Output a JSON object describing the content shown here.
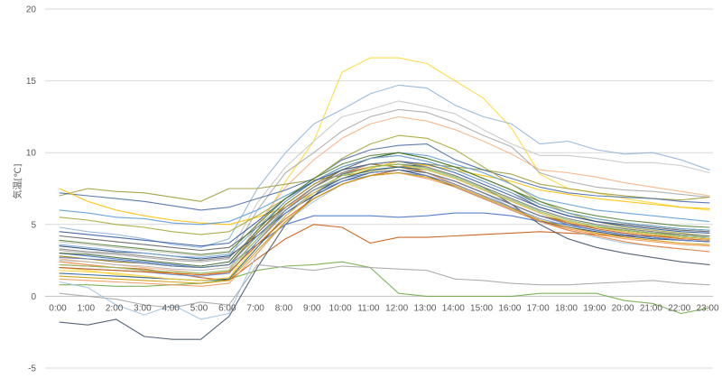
{
  "chart_data": {
    "type": "line",
    "title": "",
    "xlabel": "",
    "ylabel": "気温[℃]",
    "ylim": [
      -5,
      20
    ],
    "yticks": [
      -5,
      0,
      5,
      10,
      15,
      20
    ],
    "grid": true,
    "legend": "none",
    "categories": [
      "0:00",
      "1:00",
      "2:00",
      "3:00",
      "4:00",
      "5:00",
      "6:00",
      "7:00",
      "8:00",
      "9:00",
      "10:00",
      "11:00",
      "12:00",
      "13:00",
      "14:00",
      "15:00",
      "16:00",
      "17:00",
      "18:00",
      "19:00",
      "20:00",
      "21:00",
      "22:00",
      "23:00"
    ],
    "series": [
      {
        "color": "#ffd83a",
        "values": [
          2.0,
          1.8,
          1.5,
          1.3,
          1.2,
          1.1,
          1.2,
          4.5,
          8.0,
          10.8,
          15.6,
          16.6,
          16.6,
          16.2,
          15.0,
          13.8,
          11.7,
          8.5,
          7.5,
          7.2,
          6.8,
          6.5,
          6.2,
          6.0
        ]
      },
      {
        "color": "#8fb4d9",
        "values": [
          4.8,
          4.5,
          4.3,
          4.0,
          3.6,
          3.4,
          4.0,
          7.5,
          10.0,
          12.0,
          13.0,
          14.1,
          14.7,
          14.5,
          13.3,
          12.5,
          12.0,
          10.6,
          10.8,
          10.2,
          9.9,
          10.0,
          9.5,
          8.8
        ]
      },
      {
        "color": "#c6c6c6",
        "values": [
          3.8,
          3.6,
          3.4,
          3.2,
          3.0,
          2.8,
          3.0,
          6.5,
          9.0,
          10.8,
          12.5,
          13.0,
          13.6,
          13.2,
          12.7,
          11.6,
          10.6,
          9.8,
          9.8,
          9.6,
          9.3,
          9.3,
          9.1,
          8.6
        ]
      },
      {
        "color": "#a9a9a9",
        "values": [
          3.2,
          3.0,
          2.9,
          2.7,
          2.5,
          2.4,
          2.6,
          6.0,
          8.6,
          10.0,
          11.5,
          12.5,
          13.0,
          12.8,
          12.1,
          11.2,
          10.4,
          8.6,
          8.0,
          7.6,
          7.4,
          7.3,
          7.1,
          6.9
        ]
      },
      {
        "color": "#f4b183",
        "values": [
          2.6,
          2.4,
          2.2,
          2.0,
          1.8,
          1.6,
          1.8,
          5.0,
          7.6,
          9.5,
          11.0,
          12.0,
          12.5,
          12.2,
          11.6,
          10.8,
          9.9,
          8.8,
          8.6,
          8.3,
          7.9,
          7.6,
          7.3,
          7.0
        ]
      },
      {
        "color": "#9e9a3a",
        "values": [
          7.0,
          7.5,
          7.3,
          7.2,
          6.9,
          6.6,
          7.5,
          7.5,
          7.8,
          8.1,
          8.4,
          8.7,
          9.0,
          9.2,
          9.0,
          8.8,
          8.5,
          7.8,
          7.5,
          7.2,
          7.0,
          6.8,
          6.7,
          6.9
        ]
      },
      {
        "color": "#4a6ea9",
        "values": [
          7.2,
          7.0,
          6.8,
          6.6,
          6.3,
          6.0,
          6.2,
          6.8,
          7.4,
          8.2,
          9.5,
          10.2,
          10.5,
          10.6,
          9.5,
          8.8,
          8.2,
          7.6,
          7.2,
          7.0,
          6.9,
          6.8,
          6.6,
          6.5
        ]
      },
      {
        "color": "#ffc000",
        "values": [
          7.5,
          6.6,
          6.0,
          5.6,
          5.3,
          5.1,
          5.0,
          5.5,
          6.2,
          7.2,
          8.2,
          8.9,
          9.4,
          9.1,
          8.8,
          8.4,
          8.0,
          7.4,
          7.1,
          6.8,
          6.6,
          6.4,
          6.2,
          6.1
        ]
      },
      {
        "color": "#5b9bd5",
        "values": [
          6.0,
          5.8,
          5.5,
          5.4,
          5.1,
          5.0,
          5.2,
          6.0,
          7.0,
          8.0,
          9.0,
          9.6,
          10.0,
          9.8,
          9.2,
          8.6,
          7.8,
          6.8,
          6.4,
          6.0,
          5.8,
          5.6,
          5.4,
          5.2
        ]
      },
      {
        "color": "#70ad47",
        "values": [
          0.8,
          0.8,
          0.7,
          0.7,
          0.8,
          0.9,
          1.2,
          1.8,
          2.1,
          2.2,
          2.4,
          2.0,
          0.2,
          0.0,
          0.0,
          0.0,
          0.0,
          0.2,
          0.2,
          0.2,
          -0.3,
          -0.5,
          -1.2,
          -0.8
        ]
      },
      {
        "color": "#c55a11",
        "values": [
          2.2,
          2.1,
          2.0,
          1.9,
          1.6,
          1.3,
          1.1,
          2.6,
          4.0,
          5.0,
          4.8,
          3.7,
          4.1,
          4.1,
          4.2,
          4.3,
          4.4,
          4.5,
          4.4,
          4.3,
          4.2,
          4.2,
          4.1,
          4.0
        ]
      },
      {
        "color": "#44546a",
        "values": [
          -1.8,
          -2.0,
          -1.6,
          -2.8,
          -3.0,
          -3.0,
          -1.4,
          2.0,
          5.0,
          7.0,
          8.5,
          9.0,
          9.2,
          9.0,
          8.4,
          7.6,
          6.4,
          5.0,
          4.0,
          3.4,
          3.0,
          2.7,
          2.4,
          2.2
        ]
      },
      {
        "color": "#a5a5a5",
        "values": [
          0.2,
          0.0,
          -0.2,
          -0.6,
          -0.8,
          -0.4,
          -0.6,
          2.2,
          2.0,
          1.8,
          2.1,
          2.0,
          1.9,
          1.8,
          1.2,
          1.1,
          0.9,
          0.8,
          0.8,
          0.9,
          1.0,
          1.1,
          0.9,
          0.8
        ]
      },
      {
        "color": "#9dc3e6",
        "values": [
          1.0,
          0.6,
          -0.6,
          -1.3,
          -0.6,
          -1.6,
          -1.2,
          3.0,
          5.2,
          6.6,
          7.8,
          8.4,
          8.8,
          8.6,
          8.0,
          7.2,
          6.2,
          5.2,
          4.6,
          4.1,
          3.7,
          3.5,
          3.3,
          3.1
        ]
      },
      {
        "color": "#4472c4",
        "values": [
          3.0,
          2.8,
          2.6,
          2.4,
          2.2,
          2.0,
          2.2,
          3.6,
          5.0,
          5.6,
          5.6,
          5.6,
          5.5,
          5.6,
          5.8,
          5.8,
          5.6,
          5.2,
          5.0,
          4.8,
          4.6,
          4.4,
          4.2,
          4.1
        ]
      },
      {
        "color": "#ed7d31",
        "values": [
          2.4,
          2.2,
          2.0,
          1.8,
          1.6,
          1.5,
          1.6,
          3.8,
          6.0,
          7.6,
          8.6,
          9.0,
          9.2,
          8.6,
          7.8,
          7.0,
          6.2,
          5.2,
          4.6,
          4.2,
          3.8,
          3.5,
          3.3,
          3.1
        ]
      },
      {
        "color": "#a5a535",
        "values": [
          5.5,
          5.3,
          5.0,
          4.8,
          4.5,
          4.3,
          4.5,
          5.6,
          6.8,
          8.2,
          9.6,
          10.6,
          11.2,
          11.0,
          10.2,
          9.0,
          7.8,
          6.6,
          5.8,
          5.2,
          4.8,
          4.6,
          4.4,
          4.2
        ]
      },
      {
        "color": "#264478",
        "values": [
          3.5,
          3.3,
          3.1,
          3.0,
          2.8,
          2.6,
          2.8,
          4.2,
          5.8,
          7.0,
          8.0,
          8.6,
          8.8,
          8.4,
          7.6,
          6.8,
          6.0,
          5.2,
          4.8,
          4.5,
          4.2,
          4.0,
          3.9,
          3.8
        ]
      },
      {
        "color": "#636363",
        "values": [
          4.2,
          4.0,
          3.8,
          3.6,
          3.4,
          3.2,
          3.4,
          4.8,
          6.2,
          7.6,
          8.8,
          9.6,
          9.8,
          9.4,
          8.8,
          8.0,
          7.2,
          6.2,
          5.6,
          5.2,
          5.0,
          4.8,
          4.6,
          4.5
        ]
      },
      {
        "color": "#997300",
        "values": [
          2.8,
          2.6,
          2.4,
          2.3,
          2.1,
          2.0,
          2.2,
          4.4,
          6.4,
          7.8,
          8.8,
          9.2,
          9.0,
          8.6,
          8.0,
          7.2,
          6.4,
          5.6,
          5.2,
          4.8,
          4.6,
          4.4,
          4.3,
          4.2
        ]
      },
      {
        "color": "#255e91",
        "values": [
          1.6,
          1.5,
          1.4,
          1.3,
          1.2,
          1.1,
          1.2,
          3.4,
          5.6,
          7.2,
          8.2,
          8.8,
          9.0,
          8.8,
          8.2,
          7.4,
          6.6,
          5.8,
          5.2,
          4.8,
          4.5,
          4.3,
          4.1,
          4.0
        ]
      },
      {
        "color": "#43682b",
        "values": [
          3.0,
          2.9,
          2.7,
          2.5,
          2.3,
          2.1,
          2.4,
          4.6,
          6.6,
          8.0,
          9.0,
          9.6,
          10.0,
          9.6,
          9.0,
          8.2,
          7.4,
          6.4,
          5.8,
          5.4,
          5.1,
          4.9,
          4.7,
          4.6
        ]
      },
      {
        "color": "#698ed0",
        "values": [
          2.0,
          1.9,
          1.8,
          1.7,
          1.5,
          1.4,
          1.6,
          3.8,
          5.8,
          7.2,
          8.0,
          8.4,
          8.6,
          8.4,
          7.8,
          7.0,
          6.2,
          5.4,
          4.9,
          4.6,
          4.3,
          4.1,
          3.9,
          3.8
        ]
      },
      {
        "color": "#f1975a",
        "values": [
          1.2,
          1.1,
          1.0,
          0.9,
          0.8,
          0.7,
          0.9,
          3.0,
          5.2,
          6.8,
          7.8,
          8.4,
          8.6,
          8.2,
          7.6,
          6.8,
          6.0,
          5.2,
          4.7,
          4.3,
          4.0,
          3.8,
          3.6,
          3.5
        ]
      },
      {
        "color": "#b7b7b7",
        "values": [
          2.5,
          2.4,
          2.2,
          2.1,
          1.9,
          1.8,
          2.0,
          4.0,
          6.2,
          7.6,
          8.6,
          9.2,
          9.4,
          9.0,
          8.4,
          7.6,
          6.8,
          6.0,
          5.4,
          5.0,
          4.7,
          4.5,
          4.3,
          4.2
        ]
      },
      {
        "color": "#ffcd33",
        "values": [
          1.8,
          1.7,
          1.6,
          1.4,
          1.2,
          1.1,
          1.3,
          3.6,
          5.6,
          7.2,
          8.4,
          9.0,
          9.2,
          8.8,
          8.2,
          7.4,
          6.6,
          5.8,
          5.2,
          4.8,
          4.5,
          4.3,
          4.1,
          4.0
        ]
      },
      {
        "color": "#7cafdd",
        "values": [
          3.6,
          3.4,
          3.2,
          3.0,
          2.8,
          2.7,
          2.9,
          4.8,
          6.6,
          8.0,
          9.0,
          9.6,
          9.8,
          9.4,
          8.8,
          8.0,
          7.2,
          6.4,
          5.8,
          5.4,
          5.1,
          4.9,
          4.7,
          4.6
        ]
      },
      {
        "color": "#8cc168",
        "values": [
          2.2,
          2.1,
          2.0,
          1.8,
          1.7,
          1.6,
          1.8,
          4.0,
          6.0,
          7.4,
          8.4,
          9.0,
          9.2,
          8.9,
          8.3,
          7.5,
          6.7,
          5.9,
          5.3,
          4.9,
          4.6,
          4.4,
          4.2,
          4.1
        ]
      },
      {
        "color": "#335aa1",
        "values": [
          4.5,
          4.3,
          4.1,
          3.9,
          3.7,
          3.5,
          3.7,
          5.2,
          6.8,
          8.0,
          8.8,
          9.2,
          9.4,
          9.2,
          8.6,
          7.8,
          7.0,
          6.2,
          5.6,
          5.2,
          4.9,
          4.7,
          4.5,
          4.4
        ]
      },
      {
        "color": "#d26012",
        "values": [
          2.0,
          1.9,
          1.8,
          1.7,
          1.6,
          1.5,
          1.7,
          3.6,
          5.4,
          6.8,
          7.8,
          8.4,
          8.8,
          8.6,
          8.0,
          7.2,
          6.4,
          5.6,
          5.1,
          4.7,
          4.4,
          4.2,
          4.0,
          3.9
        ]
      },
      {
        "color": "#848484",
        "values": [
          3.3,
          3.1,
          3.0,
          2.8,
          2.6,
          2.5,
          2.7,
          4.4,
          6.2,
          7.6,
          8.6,
          9.2,
          9.4,
          9.0,
          8.4,
          7.6,
          6.8,
          6.0,
          5.4,
          5.0,
          4.7,
          4.5,
          4.3,
          4.2
        ]
      },
      {
        "color": "#cc9a06",
        "values": [
          1.4,
          1.3,
          1.2,
          1.1,
          1.0,
          0.9,
          1.1,
          3.2,
          5.2,
          6.8,
          7.8,
          8.4,
          8.6,
          8.3,
          7.7,
          6.9,
          6.1,
          5.3,
          4.8,
          4.4,
          4.1,
          3.9,
          3.7,
          3.6
        ]
      },
      {
        "color": "#5e7fb6",
        "values": [
          2.7,
          2.6,
          2.5,
          2.3,
          2.1,
          2.0,
          2.2,
          4.2,
          6.0,
          7.4,
          8.2,
          8.6,
          8.8,
          8.6,
          8.0,
          7.2,
          6.4,
          5.6,
          5.0,
          4.6,
          4.3,
          4.1,
          3.9,
          3.8
        ]
      },
      {
        "color": "#548235",
        "values": [
          3.9,
          3.7,
          3.5,
          3.3,
          3.1,
          2.9,
          3.1,
          5.0,
          6.8,
          8.2,
          9.2,
          9.8,
          10.0,
          9.6,
          9.0,
          8.2,
          7.4,
          6.6,
          6.0,
          5.6,
          5.3,
          5.1,
          4.9,
          4.8
        ]
      }
    ]
  }
}
